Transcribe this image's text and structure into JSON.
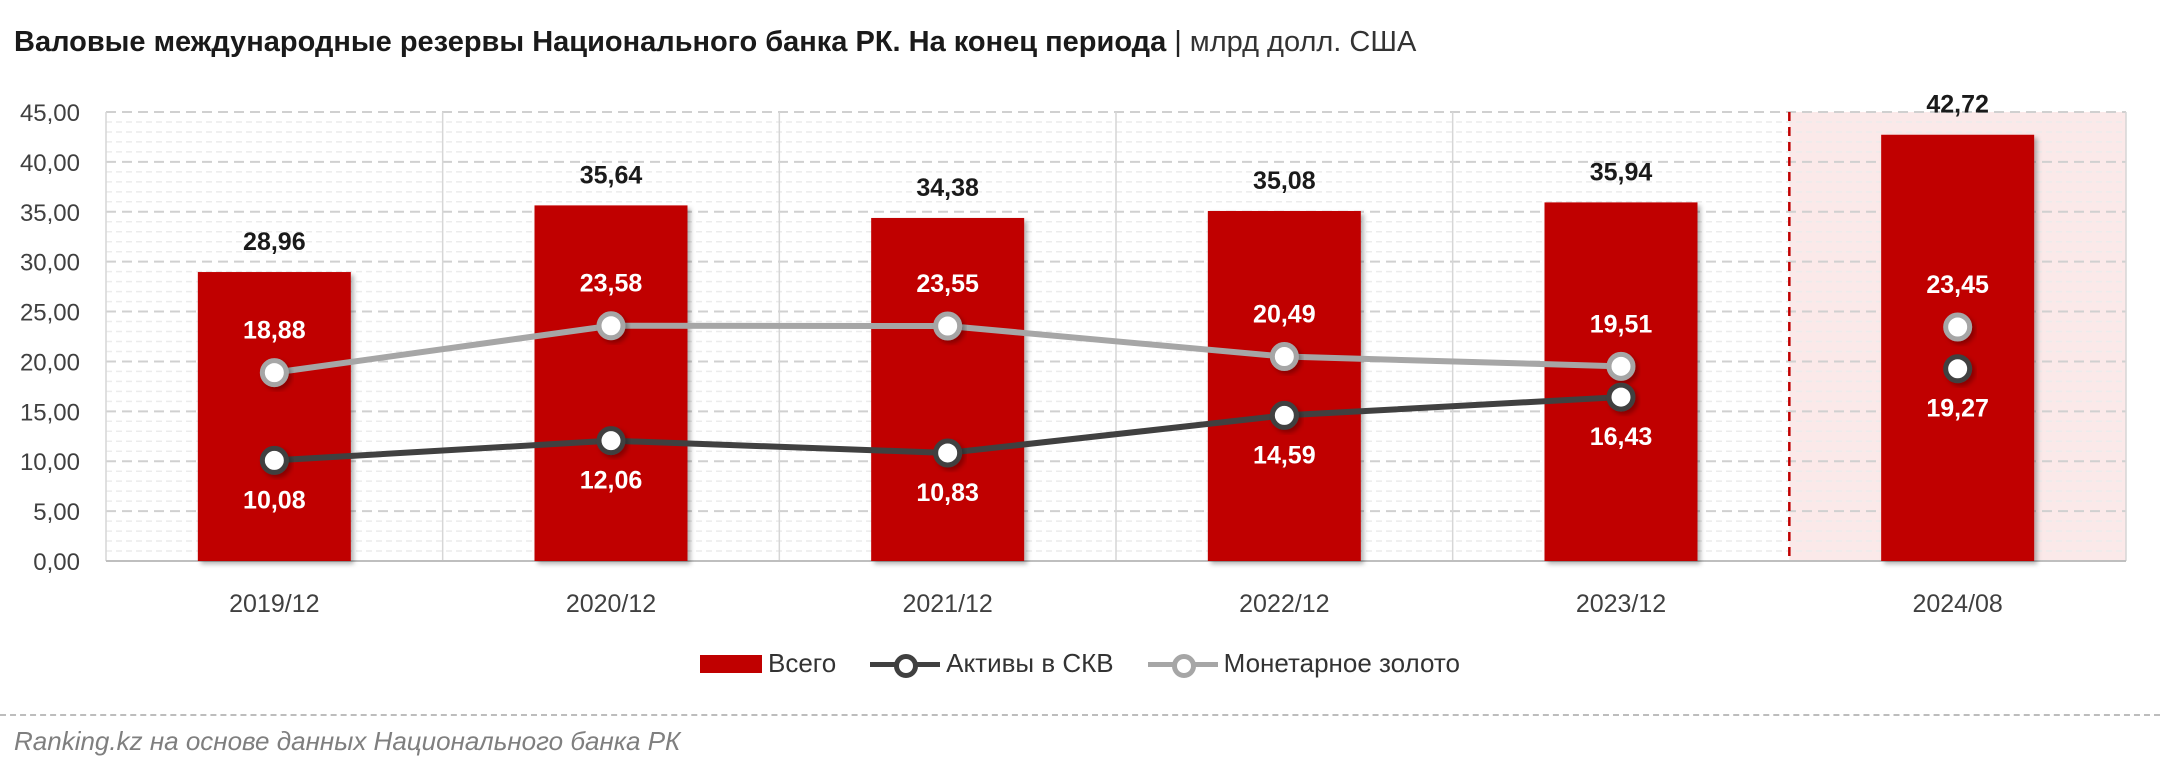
{
  "header": {
    "title_bold": "Валовые международные резервы Национального банка РК. На конец периода",
    "separator": "|",
    "unit": "млрд долл. США"
  },
  "source": "Ranking.kz на основе данных Национального банка РК",
  "colors": {
    "bar": "#c00000",
    "fx_line": "#404040",
    "gold_line": "#a6a6a6",
    "highlight_fill": "#fbe9e9",
    "highlight_border": "#c00000"
  },
  "chart_data": {
    "type": "bar",
    "categories": [
      "2019/12",
      "2020/12",
      "2021/12",
      "2022/12",
      "2023/12",
      "2024/08"
    ],
    "ylim": [
      0,
      45
    ],
    "y_ticks": [
      "0,00",
      "5,00",
      "10,00",
      "15,00",
      "20,00",
      "25,00",
      "30,00",
      "35,00",
      "40,00",
      "45,00"
    ],
    "grid": true,
    "legend_position": "bottom",
    "highlight_category": "2024/08",
    "series": [
      {
        "name": "Всего",
        "kind": "bar",
        "values": [
          28.96,
          35.64,
          34.38,
          35.08,
          35.94,
          42.72
        ],
        "labels": [
          "28,96",
          "35,64",
          "34,38",
          "35,08",
          "35,94",
          "42,72"
        ]
      },
      {
        "name": "Активы в СКВ",
        "kind": "line",
        "values": [
          10.08,
          12.06,
          10.83,
          14.59,
          16.43,
          19.27
        ],
        "labels": [
          "10,08",
          "12,06",
          "10,83",
          "14,59",
          "16,43",
          "19,27"
        ]
      },
      {
        "name": "Монетарное золото",
        "kind": "line",
        "values": [
          18.88,
          23.58,
          23.55,
          20.49,
          19.51,
          23.45
        ],
        "labels": [
          "18,88",
          "23,58",
          "23,55",
          "20,49",
          "19,51",
          "23,45"
        ]
      }
    ]
  }
}
